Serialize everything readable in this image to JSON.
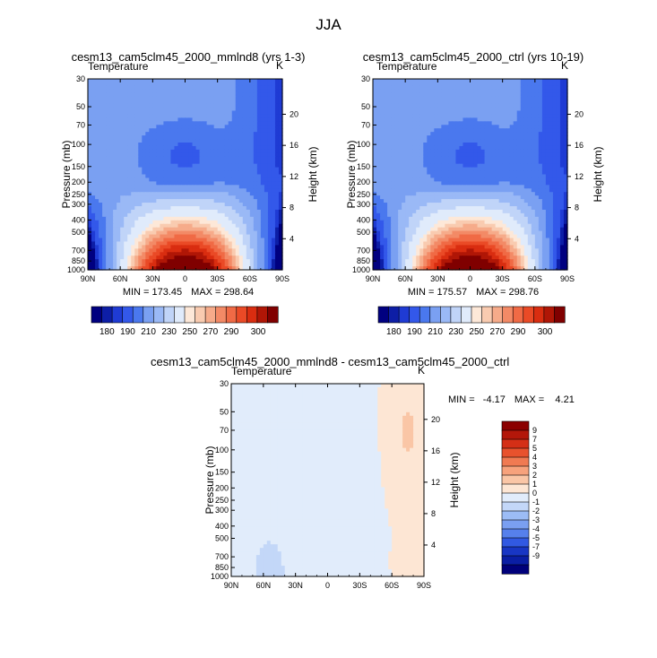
{
  "page_title": "JJA",
  "chart_data": [
    {
      "type": "heatmap",
      "title": "cesm13_cam5clm45_2000_mmlnd8 (yrs 1-3)",
      "subtitle": "Temperature",
      "units": "K",
      "xlabel": "",
      "ylabel": "Pressure (mb)",
      "ylabel_right": "Height (km)",
      "x_ticks": [
        "90N",
        "60N",
        "30N",
        "0",
        "30S",
        "60S",
        "90S"
      ],
      "y_ticks": [
        "30",
        "50",
        "70",
        "100",
        "150",
        "200",
        "250",
        "300",
        "400",
        "500",
        "700",
        "850",
        "1000"
      ],
      "height_ticks": [
        "20",
        "16",
        "12",
        "8",
        "4"
      ],
      "min_label": "MIN = 173.45",
      "max_label": "MAX = 298.64",
      "min": 173.45,
      "max": 298.64,
      "colorbar": {
        "labels": [
          "180",
          "190",
          "210",
          "230",
          "250",
          "270",
          "290",
          "300"
        ],
        "colors": [
          "#000080",
          "#0d1ea6",
          "#1f3bd4",
          "#3358ea",
          "#4a78ee",
          "#7aa0f2",
          "#9ab9f6",
          "#c0d4f8",
          "#e0ebfb",
          "#fde8d8",
          "#f9cbb0",
          "#f6ab8a",
          "#f38a66",
          "#f06a45",
          "#ea4a26",
          "#d92d10",
          "#b01606",
          "#800000"
        ]
      }
    },
    {
      "type": "heatmap",
      "title": "cesm13_cam5clm45_2000_ctrl (yrs 10-19)",
      "subtitle": "Temperature",
      "units": "K",
      "xlabel": "",
      "ylabel": "Pressure (mb)",
      "ylabel_right": "Height (km)",
      "x_ticks": [
        "90N",
        "60N",
        "30N",
        "0",
        "30S",
        "60S",
        "90S"
      ],
      "y_ticks": [
        "30",
        "50",
        "70",
        "100",
        "150",
        "200",
        "250",
        "300",
        "400",
        "500",
        "700",
        "850",
        "1000"
      ],
      "height_ticks": [
        "20",
        "16",
        "12",
        "8",
        "4"
      ],
      "min_label": "MIN = 175.57",
      "max_label": "MAX = 298.76",
      "min": 175.57,
      "max": 298.76,
      "colorbar": {
        "labels": [
          "180",
          "190",
          "210",
          "230",
          "250",
          "270",
          "290",
          "300"
        ],
        "colors": [
          "#000080",
          "#0d1ea6",
          "#1f3bd4",
          "#3358ea",
          "#4a78ee",
          "#7aa0f2",
          "#9ab9f6",
          "#c0d4f8",
          "#e0ebfb",
          "#fde8d8",
          "#f9cbb0",
          "#f6ab8a",
          "#f38a66",
          "#f06a45",
          "#ea4a26",
          "#d92d10",
          "#b01606",
          "#800000"
        ]
      }
    },
    {
      "type": "heatmap",
      "title": "cesm13_cam5clm45_2000_mmlnd8 - cesm13_cam5clm45_2000_ctrl",
      "subtitle": "Temperature",
      "units": "K",
      "xlabel": "",
      "ylabel": "Pressure (mb)",
      "ylabel_right": "Height (km)",
      "x_ticks": [
        "90N",
        "60N",
        "30N",
        "0",
        "30S",
        "60S",
        "90S"
      ],
      "y_ticks": [
        "30",
        "50",
        "70",
        "100",
        "150",
        "200",
        "250",
        "300",
        "400",
        "500",
        "700",
        "850",
        "1000"
      ],
      "height_ticks": [
        "20",
        "16",
        "12",
        "8",
        "4"
      ],
      "min_label": "MIN =   -4.17",
      "max_label": "MAX =    4.21",
      "min": -4.17,
      "max": 4.21,
      "colorbar": {
        "labels": [
          "9",
          "7",
          "5",
          "4",
          "3",
          "2",
          "1",
          "0",
          "-1",
          "-2",
          "-3",
          "-4",
          "-5",
          "-7",
          "-9"
        ],
        "colors": [
          "#8b0000",
          "#b3170a",
          "#d42f16",
          "#e8522d",
          "#f07a52",
          "#f7a27c",
          "#fac6a6",
          "#fde6d4",
          "#e1ecfb",
          "#c3d7f8",
          "#9cbcf5",
          "#7a9ff1",
          "#5680ec",
          "#3159e2",
          "#1836c4",
          "#0a1ea4",
          "#00007a"
        ]
      }
    }
  ]
}
